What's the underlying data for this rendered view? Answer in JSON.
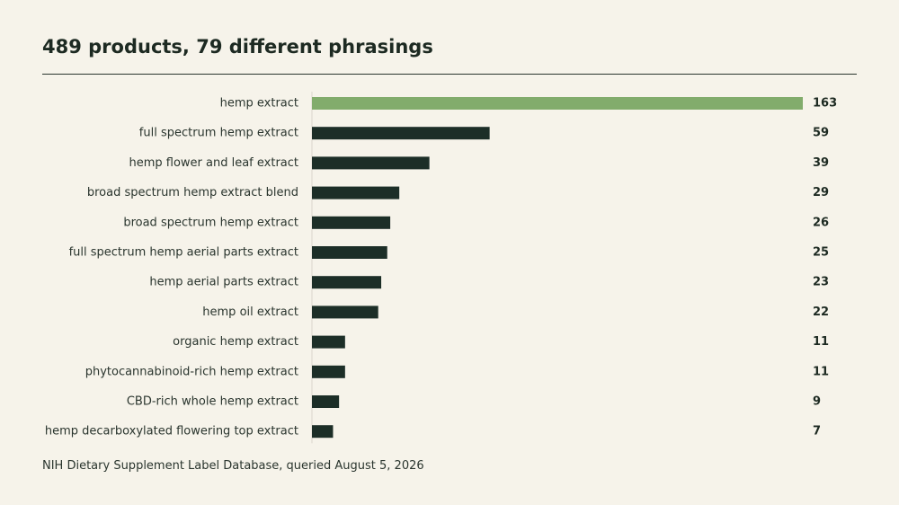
{
  "title": "489 products, 79 different phrasings",
  "source": "NIH Dietary Supplement Label Database, queried August 5, 2026",
  "colors": {
    "highlight": "#82ac6c",
    "bar": "#1c2e27",
    "axis": "#d9d6cc"
  },
  "chart_data": {
    "type": "bar",
    "orientation": "horizontal",
    "categories": [
      "hemp extract",
      "full spectrum hemp extract",
      "hemp flower and leaf extract",
      "broad spectrum hemp extract blend",
      "broad spectrum hemp extract",
      "full spectrum hemp aerial parts extract",
      "hemp aerial parts extract",
      "hemp oil extract",
      "organic hemp extract",
      "phytocannabinoid-rich hemp extract",
      "CBD-rich whole hemp extract",
      "hemp decarboxylated flowering top extract"
    ],
    "values": [
      163,
      59,
      39,
      29,
      26,
      25,
      23,
      22,
      11,
      11,
      9,
      7
    ],
    "value_labels": [
      "163",
      "59",
      "39",
      "29",
      "26",
      "25",
      "23",
      "22",
      "11",
      "11",
      "9",
      "7"
    ],
    "highlighted_index": 0,
    "xlim": [
      0,
      163
    ],
    "grid": false,
    "legend": "none",
    "title": "489 products, 79 different phrasings",
    "xlabel": "",
    "ylabel": ""
  }
}
